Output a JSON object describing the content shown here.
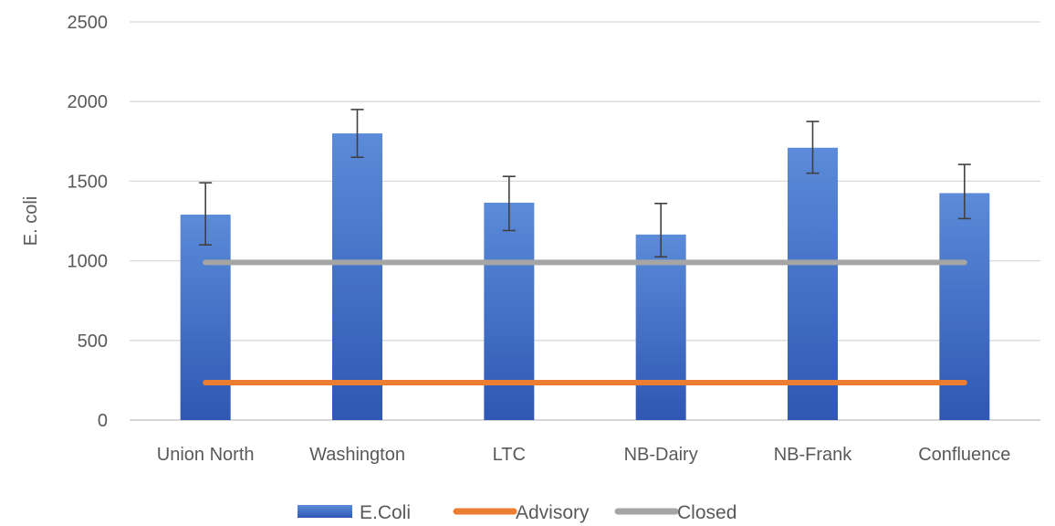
{
  "chart_data": {
    "type": "bar",
    "title": "",
    "xlabel": "",
    "ylabel": "E. coli",
    "ylim": [
      0,
      2500
    ],
    "yticks": [
      0,
      500,
      1000,
      1500,
      2000,
      2500
    ],
    "grid": true,
    "legend_position": "bottom",
    "categories": [
      "Union North",
      "Washington",
      "LTC",
      "NB-Dairy",
      "NB-Frank",
      "Confluence"
    ],
    "series": [
      {
        "name": "E.Coli",
        "kind": "bar",
        "color": "#4472C4",
        "values": [
          1290,
          1800,
          1365,
          1165,
          1710,
          1425
        ],
        "error_upper": [
          1490,
          1950,
          1530,
          1360,
          1875,
          1605
        ],
        "error_lower": [
          1100,
          1650,
          1190,
          1025,
          1550,
          1265
        ]
      },
      {
        "name": "Advisory",
        "kind": "line",
        "color": "#ED7D31",
        "values": [
          235,
          235,
          235,
          235,
          235,
          235
        ]
      },
      {
        "name": "Closed",
        "kind": "line",
        "color": "#A5A5A5",
        "values": [
          990,
          990,
          990,
          990,
          990,
          990
        ]
      }
    ]
  }
}
